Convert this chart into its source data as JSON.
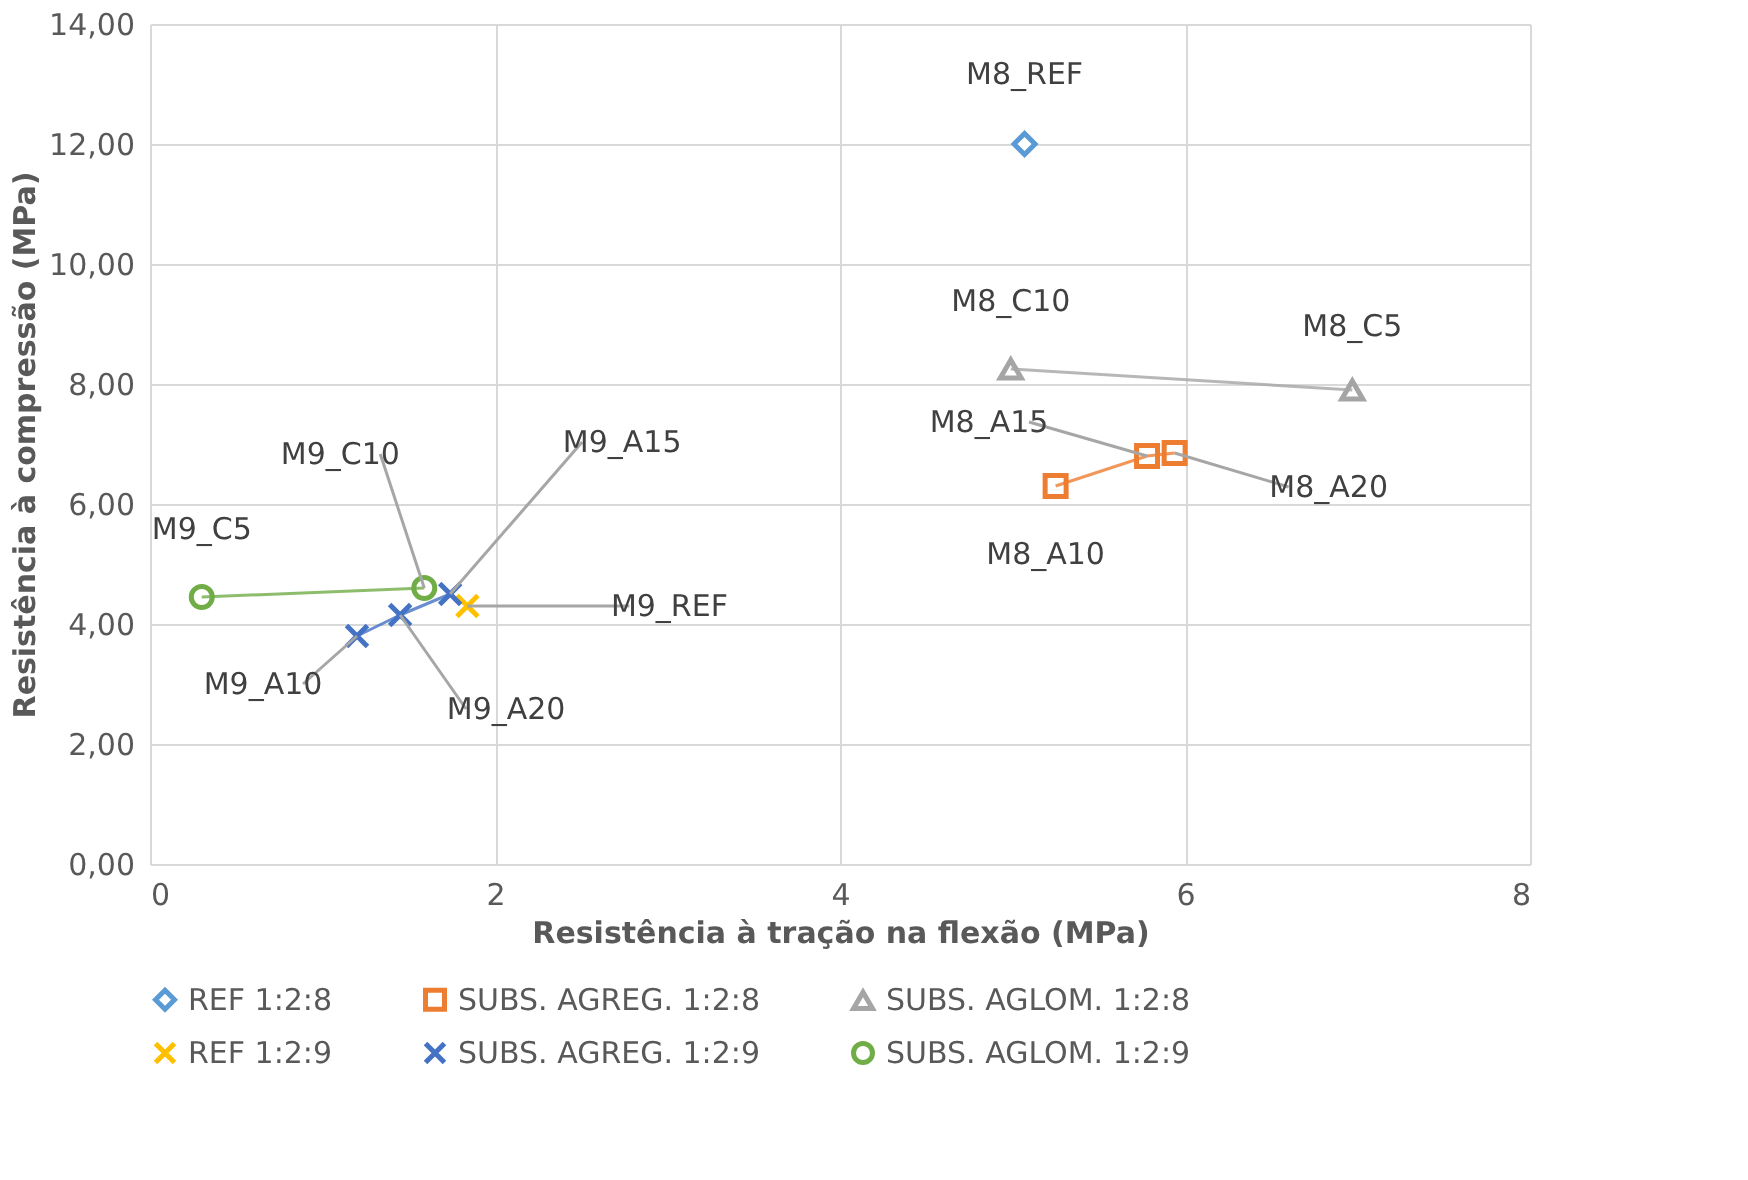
{
  "chart_data": {
    "type": "line",
    "xlabel": "Resistência à tração na flexão (MPa)",
    "ylabel": "Resistência à compressão (MPa)",
    "xlim": [
      0,
      8
    ],
    "xticks": [
      0,
      2,
      4,
      6,
      8
    ],
    "ylim": [
      0,
      14
    ],
    "yticks": [
      {
        "value": 0,
        "label": "0,00"
      },
      {
        "value": 2,
        "label": "2,00"
      },
      {
        "value": 4,
        "label": "4,00"
      },
      {
        "value": 6,
        "label": "6,00"
      },
      {
        "value": 8,
        "label": "8,00"
      },
      {
        "value": 10,
        "label": "10,00"
      },
      {
        "value": 12,
        "label": "12,00"
      },
      {
        "value": 14,
        "label": "14,00"
      }
    ],
    "grid": true,
    "legend": "bottom",
    "series": [
      {
        "name": "REF 1:2:8",
        "color": "#5b9bd5",
        "marker": "diamond",
        "x": [
          5.07
        ],
        "values": [
          12.0
        ]
      },
      {
        "name": "SUBS. AGREG. 1:2:8",
        "color": "#ed7d31",
        "marker": "square",
        "x": [
          5.25,
          5.78,
          5.94
        ],
        "values": [
          6.3,
          6.8,
          6.85
        ]
      },
      {
        "name": "SUBS. AGLOM. 1:2:8",
        "color": "#a5a5a5",
        "marker": "triangle",
        "x": [
          4.99,
          6.97
        ],
        "values": [
          8.25,
          7.9
        ]
      },
      {
        "name": "REF 1:2:9",
        "color": "#ffc000",
        "marker": "cross",
        "x": [
          1.84
        ],
        "values": [
          4.3
        ]
      },
      {
        "name": "SUBS. AGREG. 1:2:9",
        "color": "#4472c4",
        "marker": "cross",
        "x": [
          1.2,
          1.45,
          1.74
        ],
        "values": [
          3.8,
          4.15,
          4.5
        ]
      },
      {
        "name": "SUBS. AGLOM. 1:2:9",
        "color": "#70ad47",
        "marker": "circle",
        "x": [
          0.3,
          1.59
        ],
        "values": [
          4.45,
          4.6
        ]
      }
    ],
    "annotations": [
      {
        "text": "M8_REF",
        "x": 5.07,
        "y": 12.0
      },
      {
        "text": "M8_C10",
        "x": 4.99,
        "y": 8.25
      },
      {
        "text": "M8_C5",
        "x": 6.97,
        "y": 7.9
      },
      {
        "text": "M8_A15",
        "x": 5.78,
        "y": 6.8
      },
      {
        "text": "M8_A20",
        "x": 5.94,
        "y": 6.85
      },
      {
        "text": "M8_A10",
        "x": 5.25,
        "y": 6.3
      },
      {
        "text": "M9_C10",
        "x": 1.59,
        "y": 4.6
      },
      {
        "text": "M9_A15",
        "x": 1.74,
        "y": 4.5
      },
      {
        "text": "M9_C5",
        "x": 0.3,
        "y": 4.45
      },
      {
        "text": "M9_REF",
        "x": 1.84,
        "y": 4.3
      },
      {
        "text": "M9_A10",
        "x": 1.2,
        "y": 3.8
      },
      {
        "text": "M9_A20",
        "x": 1.45,
        "y": 4.15
      }
    ]
  }
}
